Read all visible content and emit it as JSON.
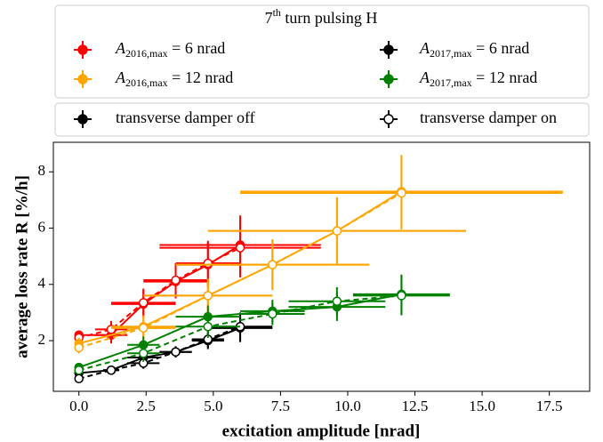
{
  "chart_data": {
    "type": "errorbar",
    "xlabel": "excitation amplitude [nrad]",
    "ylabel": "average loss rate R [%/h]",
    "xlim": [
      -0.95,
      19.0
    ],
    "ylim": [
      0.2,
      9.05
    ],
    "xticks": [
      {
        "value": 0,
        "label": "0.0"
      },
      2.5,
      {
        "value": 5,
        "label": "5.0"
      },
      7.5,
      {
        "value": 10,
        "label": "10.0"
      },
      12.5,
      {
        "value": 15,
        "label": "15.0"
      },
      17.5
    ],
    "yticks": [
      2,
      4,
      6,
      8
    ],
    "grid": false,
    "legend": [
      {
        "title": {
          "base": "7",
          "sup": "th",
          "rest": " turn pulsing H"
        },
        "entries": [
          {
            "symbol": "A",
            "sub": "2016,max",
            "rest": " = 6 nrad",
            "color": "#ff0000"
          },
          {
            "symbol": "A",
            "sub": "2017,max",
            "rest": " = 6 nrad",
            "color": "#000000"
          },
          {
            "symbol": "A",
            "sub": "2016,max",
            "rest": " = 12 nrad",
            "color": "#ffa500"
          },
          {
            "symbol": "A",
            "sub": "2017,max",
            "rest": " = 12 nrad",
            "color": "#008000"
          }
        ]
      },
      {
        "entries": [
          {
            "label": "transverse damper off",
            "color": "#000000",
            "marker": "filled"
          },
          {
            "label": "transverse damper on",
            "color": "#000000",
            "marker": "open"
          }
        ]
      }
    ],
    "series": [
      {
        "color": "#ff0000",
        "marker": "filled",
        "linestyle": "solid",
        "x": [
          0,
          1.2,
          2.4,
          3.6,
          4.8,
          6.0
        ],
        "values": [
          2.2,
          2.2,
          3.3,
          4.1,
          4.7,
          5.4
        ],
        "xerr": [
          0,
          0.6,
          1.2,
          1.2,
          1.2,
          3.0
        ],
        "yerr": [
          0.15,
          0.3,
          0.5,
          0.6,
          0.8,
          1.05
        ]
      },
      {
        "color": "#ff0000",
        "marker": "open",
        "linestyle": "dashed",
        "x": [
          0,
          1.2,
          2.4,
          3.6,
          4.8,
          6.0
        ],
        "values": [
          2.1,
          2.4,
          3.35,
          4.15,
          4.75,
          5.3
        ],
        "xerr": [
          0,
          0.6,
          1.2,
          1.2,
          1.2,
          3.0
        ],
        "yerr": [
          0.15,
          0.3,
          0.5,
          0.6,
          0.8,
          1.05
        ]
      },
      {
        "color": "#ffa500",
        "marker": "filled",
        "linestyle": "solid",
        "x": [
          0,
          2.4,
          4.8,
          7.2,
          9.6,
          12.0
        ],
        "values": [
          1.9,
          2.5,
          3.6,
          4.7,
          5.9,
          7.3
        ],
        "xerr": [
          0,
          1.2,
          2.4,
          3.6,
          4.8,
          6.0
        ],
        "yerr": [
          0.2,
          0.4,
          0.6,
          0.9,
          1.2,
          1.3
        ]
      },
      {
        "color": "#ffa500",
        "marker": "open",
        "linestyle": "dashed",
        "x": [
          0,
          2.4,
          4.8,
          7.2,
          9.6,
          12.0
        ],
        "values": [
          1.75,
          2.45,
          3.6,
          4.7,
          5.9,
          7.25
        ],
        "xerr": [
          0,
          1.2,
          2.4,
          3.6,
          4.8,
          6.0
        ],
        "yerr": [
          0.2,
          0.4,
          0.6,
          0.9,
          1.2,
          1.3
        ]
      },
      {
        "color": "#000000",
        "marker": "filled",
        "linestyle": "solid",
        "x": [
          0,
          1.2,
          2.4,
          3.6,
          4.8,
          6.0
        ],
        "values": [
          0.85,
          0.95,
          1.4,
          1.6,
          2.0,
          2.45
        ],
        "xerr": [
          0,
          0.3,
          0.6,
          0.6,
          0.6,
          1.2
        ],
        "yerr": [
          0.1,
          0.1,
          0.2,
          0.2,
          0.3,
          0.5
        ]
      },
      {
        "color": "#000000",
        "marker": "open",
        "linestyle": "dashed",
        "x": [
          0,
          1.2,
          2.4,
          3.6,
          4.8,
          6.0
        ],
        "values": [
          0.65,
          0.95,
          1.2,
          1.6,
          2.05,
          2.5
        ],
        "xerr": [
          0,
          0.3,
          0.6,
          0.6,
          0.6,
          1.2
        ],
        "yerr": [
          0.1,
          0.1,
          0.2,
          0.2,
          0.3,
          0.5
        ]
      },
      {
        "color": "#008000",
        "marker": "filled",
        "linestyle": "solid",
        "x": [
          0,
          2.4,
          4.8,
          7.2,
          9.6,
          12.0
        ],
        "values": [
          1.05,
          1.85,
          2.85,
          3.05,
          3.2,
          3.65
        ],
        "xerr": [
          0,
          0.6,
          1.2,
          1.2,
          1.8,
          1.8
        ],
        "yerr": [
          0.1,
          0.3,
          0.4,
          0.4,
          0.5,
          0.7
        ]
      },
      {
        "color": "#008000",
        "marker": "open",
        "linestyle": "dashed",
        "x": [
          0,
          2.4,
          4.8,
          7.2,
          9.6,
          12.0
        ],
        "values": [
          0.95,
          1.55,
          2.5,
          2.95,
          3.4,
          3.6
        ],
        "xerr": [
          0,
          0.6,
          1.2,
          1.2,
          1.8,
          1.8
        ],
        "yerr": [
          0.1,
          0.3,
          0.4,
          0.4,
          0.5,
          0.7
        ]
      }
    ]
  }
}
